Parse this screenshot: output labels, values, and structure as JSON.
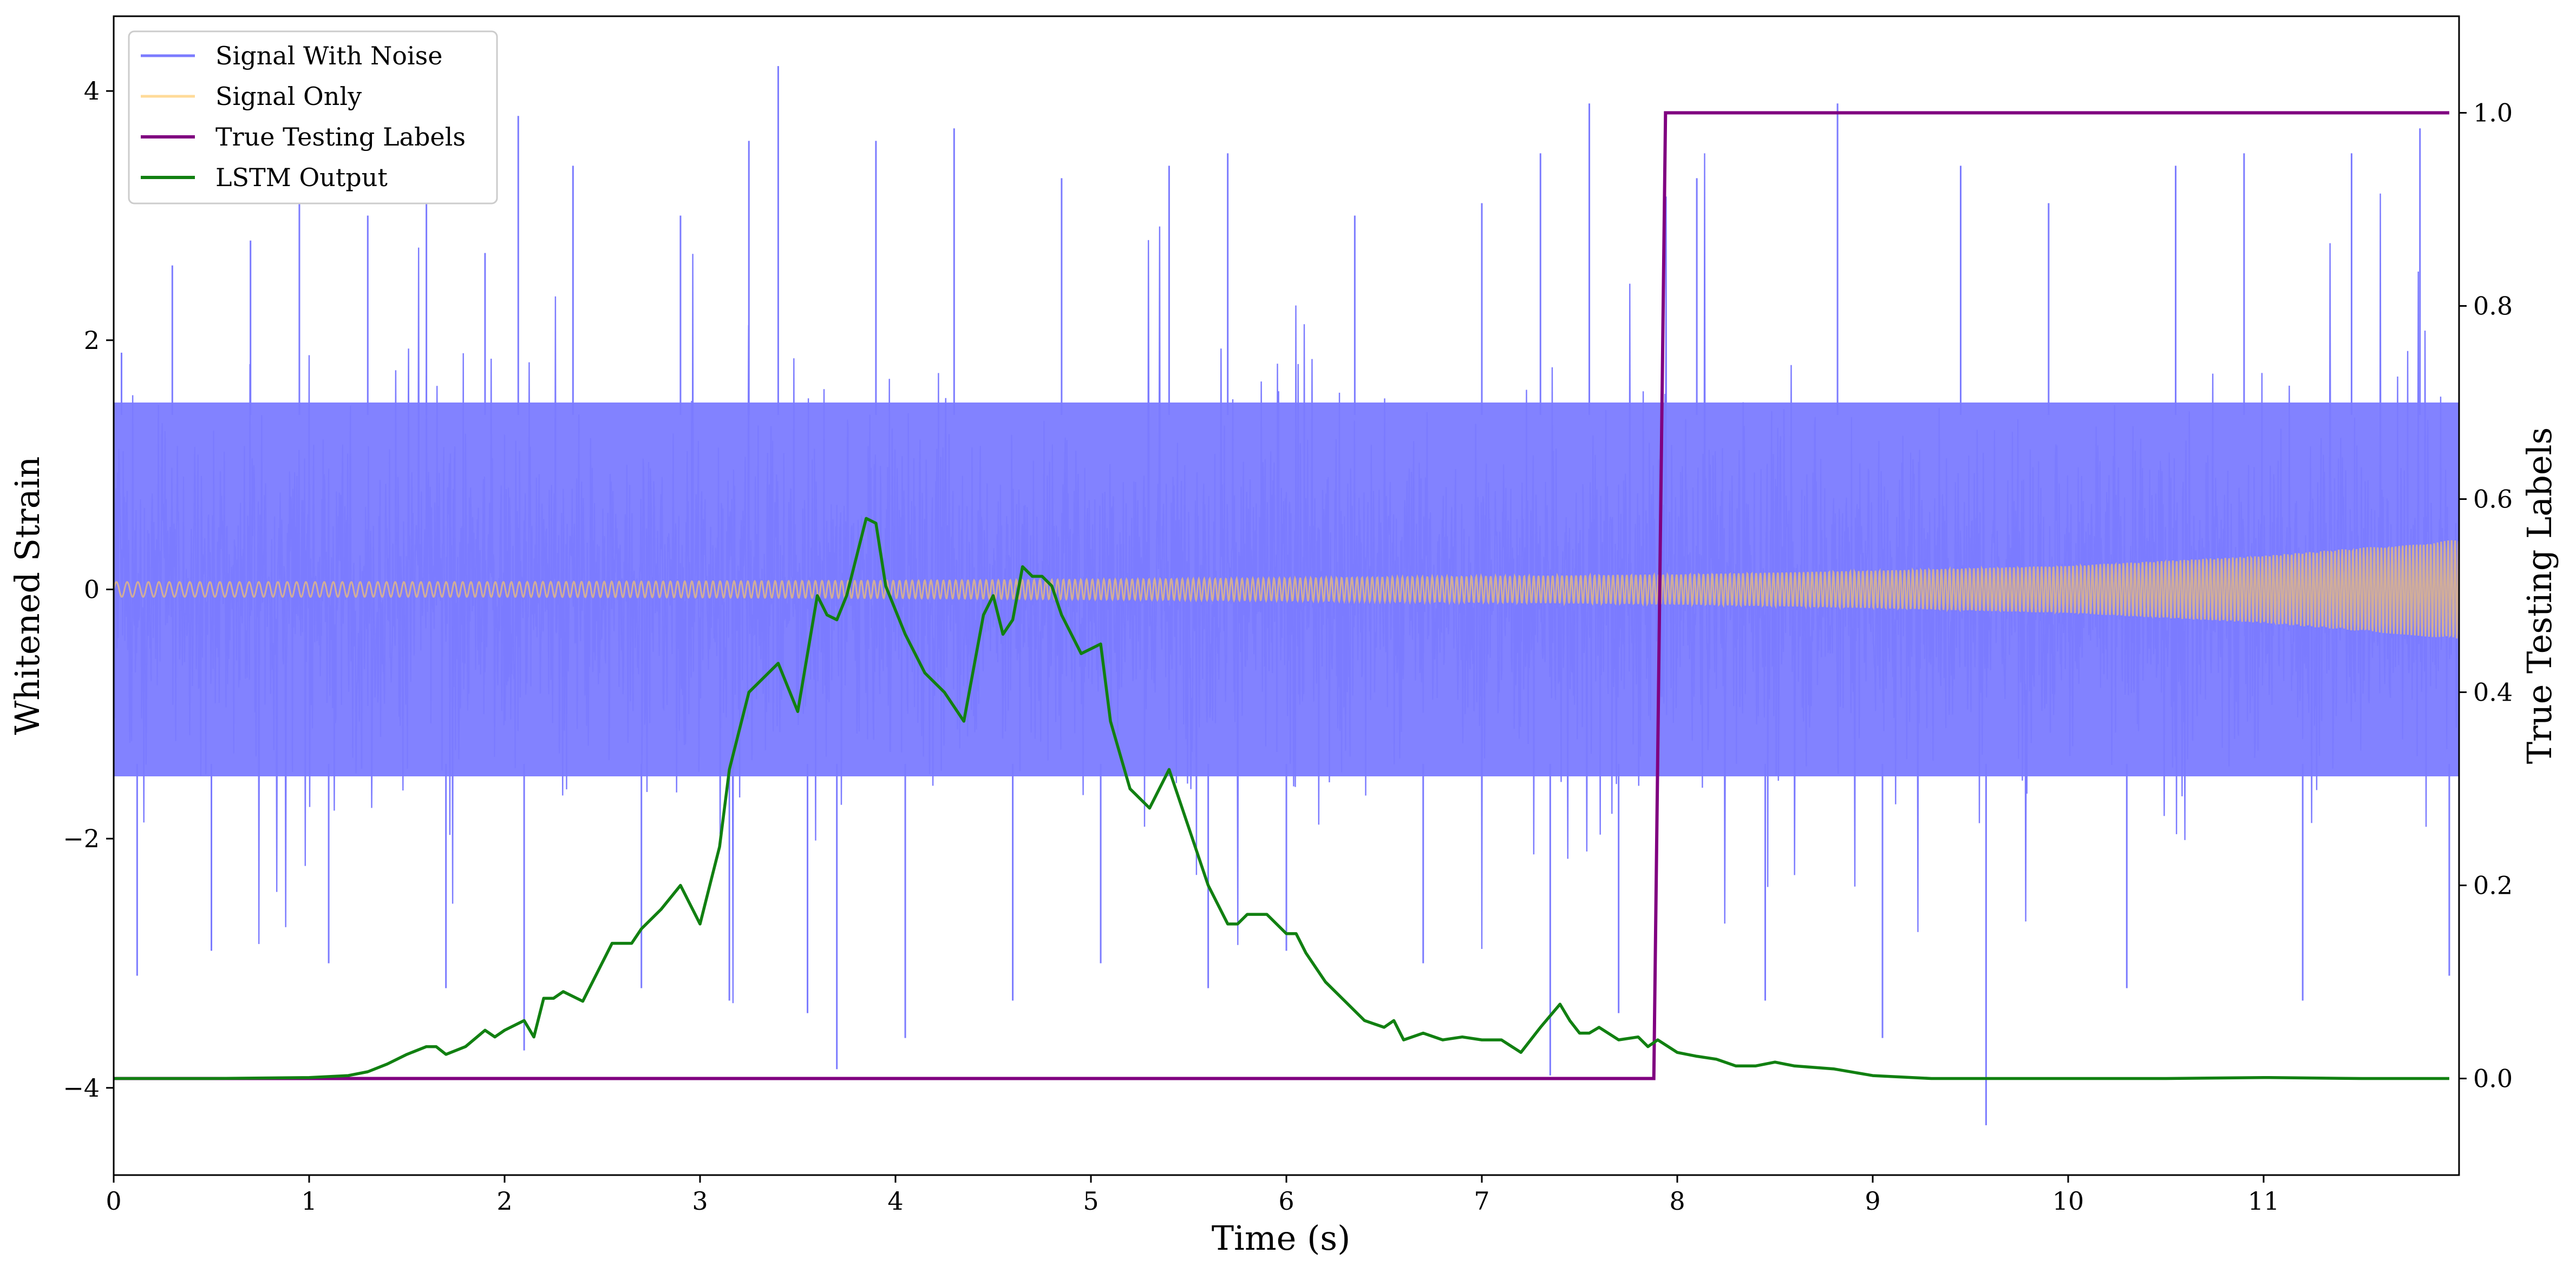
{
  "chart_data": {
    "type": "line",
    "xlabel": "Time (s)",
    "ylabel_left": "Whitened Strain",
    "ylabel_right": "True Testing Labels",
    "xlim": [
      0,
      12
    ],
    "ylim_left": [
      -4.7,
      4.6
    ],
    "ylim_right": [
      -0.1,
      1.1
    ],
    "x_ticks": [
      0,
      1,
      2,
      3,
      4,
      5,
      6,
      7,
      8,
      9,
      10,
      11
    ],
    "y_left_ticks": [
      {
        "value": -4,
        "label": "−4"
      },
      {
        "value": -2,
        "label": "−2"
      },
      {
        "value": 0,
        "label": "0"
      },
      {
        "value": 2,
        "label": "2"
      },
      {
        "value": 4,
        "label": "4"
      }
    ],
    "y_right_ticks": [
      {
        "value": 0.0,
        "label": "0.0"
      },
      {
        "value": 0.2,
        "label": "0.2"
      },
      {
        "value": 0.4,
        "label": "0.4"
      },
      {
        "value": 0.6,
        "label": "0.6"
      },
      {
        "value": 0.8,
        "label": "0.8"
      },
      {
        "value": 1.0,
        "label": "1.0"
      }
    ],
    "grid": false,
    "legend_position": "top-left",
    "series": [
      {
        "name": "Signal With Noise",
        "axis": "left",
        "color": "#7b7bff",
        "style": "dense noise band",
        "x_range": [
          0,
          12
        ],
        "core_amplitude": [
          -1.5,
          1.5
        ],
        "peak_range": [
          -4.3,
          4.2
        ],
        "spikes": [
          {
            "x": 0.04,
            "y": 1.9
          },
          {
            "x": 0.12,
            "y": -3.1
          },
          {
            "x": 0.3,
            "y": 2.6
          },
          {
            "x": 0.5,
            "y": -2.9
          },
          {
            "x": 0.7,
            "y": 2.8
          },
          {
            "x": 0.95,
            "y": 3.1
          },
          {
            "x": 1.1,
            "y": -3.0
          },
          {
            "x": 1.3,
            "y": 3.0
          },
          {
            "x": 1.6,
            "y": 3.1
          },
          {
            "x": 1.7,
            "y": -3.2
          },
          {
            "x": 1.9,
            "y": 2.7
          },
          {
            "x": 2.07,
            "y": 3.8
          },
          {
            "x": 2.1,
            "y": -3.7
          },
          {
            "x": 2.35,
            "y": 3.4
          },
          {
            "x": 2.7,
            "y": -3.2
          },
          {
            "x": 2.9,
            "y": 3.0
          },
          {
            "x": 3.15,
            "y": -3.3
          },
          {
            "x": 3.25,
            "y": 3.6
          },
          {
            "x": 3.4,
            "y": 4.2
          },
          {
            "x": 3.55,
            "y": -3.4
          },
          {
            "x": 3.7,
            "y": -3.85
          },
          {
            "x": 3.9,
            "y": 3.6
          },
          {
            "x": 4.05,
            "y": -3.6
          },
          {
            "x": 4.3,
            "y": 3.7
          },
          {
            "x": 4.6,
            "y": -3.3
          },
          {
            "x": 4.85,
            "y": 3.3
          },
          {
            "x": 5.05,
            "y": -3.0
          },
          {
            "x": 5.4,
            "y": 3.4
          },
          {
            "x": 5.6,
            "y": -3.2
          },
          {
            "x": 5.7,
            "y": 3.5
          },
          {
            "x": 6.0,
            "y": -2.9
          },
          {
            "x": 6.35,
            "y": 3.0
          },
          {
            "x": 6.7,
            "y": -3.0
          },
          {
            "x": 7.0,
            "y": 3.1
          },
          {
            "x": 7.3,
            "y": 3.5
          },
          {
            "x": 7.35,
            "y": -3.9
          },
          {
            "x": 7.55,
            "y": 3.9
          },
          {
            "x": 7.7,
            "y": -3.4
          },
          {
            "x": 8.1,
            "y": 3.3
          },
          {
            "x": 8.45,
            "y": -3.3
          },
          {
            "x": 8.82,
            "y": 3.9
          },
          {
            "x": 9.05,
            "y": -3.6
          },
          {
            "x": 9.45,
            "y": 3.4
          },
          {
            "x": 9.58,
            "y": -4.3
          },
          {
            "x": 9.9,
            "y": 3.1
          },
          {
            "x": 10.3,
            "y": -3.2
          },
          {
            "x": 10.55,
            "y": 3.4
          },
          {
            "x": 10.9,
            "y": 3.5
          },
          {
            "x": 11.2,
            "y": -3.3
          },
          {
            "x": 11.45,
            "y": 3.5
          },
          {
            "x": 11.8,
            "y": 3.7
          },
          {
            "x": 11.95,
            "y": -3.1
          }
        ]
      },
      {
        "name": "Signal Only",
        "axis": "left",
        "color": "#ffc861",
        "style": "chirp",
        "envelope": [
          {
            "x": 0,
            "amp": 0.06
          },
          {
            "x": 2,
            "amp": 0.06
          },
          {
            "x": 4,
            "amp": 0.07
          },
          {
            "x": 6,
            "amp": 0.09
          },
          {
            "x": 8,
            "amp": 0.12
          },
          {
            "x": 9,
            "amp": 0.15
          },
          {
            "x": 10,
            "amp": 0.19
          },
          {
            "x": 11,
            "amp": 0.27
          },
          {
            "x": 12,
            "amp": 0.4
          }
        ]
      },
      {
        "name": "True Testing Labels",
        "axis": "right",
        "color": "#800080",
        "x": [
          0,
          7.88,
          7.94,
          11.95
        ],
        "y": [
          0.0,
          0.0,
          1.0,
          1.0
        ]
      },
      {
        "name": "LSTM Output",
        "axis": "right",
        "color": "#118011",
        "x": [
          0,
          0.5,
          1.0,
          1.2,
          1.3,
          1.4,
          1.5,
          1.6,
          1.65,
          1.7,
          1.8,
          1.9,
          1.95,
          2.0,
          2.1,
          2.15,
          2.2,
          2.25,
          2.3,
          2.4,
          2.5,
          2.55,
          2.65,
          2.7,
          2.8,
          2.9,
          3.0,
          3.05,
          3.1,
          3.15,
          3.2,
          3.25,
          3.35,
          3.4,
          3.5,
          3.6,
          3.65,
          3.7,
          3.75,
          3.85,
          3.9,
          3.95,
          4.05,
          4.15,
          4.25,
          4.35,
          4.45,
          4.5,
          4.55,
          4.6,
          4.65,
          4.7,
          4.75,
          4.8,
          4.85,
          4.95,
          5.05,
          5.1,
          5.2,
          5.3,
          5.4,
          5.5,
          5.6,
          5.7,
          5.75,
          5.8,
          5.9,
          6.0,
          6.05,
          6.1,
          6.2,
          6.3,
          6.4,
          6.5,
          6.55,
          6.6,
          6.7,
          6.8,
          6.9,
          7.0,
          7.1,
          7.2,
          7.3,
          7.4,
          7.45,
          7.5,
          7.55,
          7.6,
          7.7,
          7.8,
          7.85,
          7.9,
          8.0,
          8.1,
          8.2,
          8.3,
          8.4,
          8.5,
          8.6,
          8.8,
          9.0,
          9.3,
          9.6,
          10.0,
          10.5,
          11.0,
          11.5,
          11.95
        ],
        "y": [
          0.0,
          0.0,
          0.001,
          0.003,
          0.007,
          0.015,
          0.025,
          0.033,
          0.033,
          0.025,
          0.033,
          0.05,
          0.043,
          0.05,
          0.06,
          0.043,
          0.083,
          0.083,
          0.09,
          0.08,
          0.12,
          0.14,
          0.14,
          0.155,
          0.175,
          0.2,
          0.16,
          0.2,
          0.24,
          0.32,
          0.36,
          0.4,
          0.42,
          0.43,
          0.38,
          0.5,
          0.48,
          0.475,
          0.5,
          0.58,
          0.575,
          0.51,
          0.46,
          0.42,
          0.4,
          0.37,
          0.48,
          0.5,
          0.46,
          0.475,
          0.53,
          0.52,
          0.52,
          0.51,
          0.48,
          0.44,
          0.45,
          0.37,
          0.3,
          0.28,
          0.32,
          0.26,
          0.2,
          0.16,
          0.16,
          0.17,
          0.17,
          0.15,
          0.15,
          0.13,
          0.1,
          0.08,
          0.06,
          0.053,
          0.06,
          0.04,
          0.047,
          0.04,
          0.043,
          0.04,
          0.04,
          0.027,
          0.053,
          0.077,
          0.06,
          0.047,
          0.047,
          0.053,
          0.04,
          0.043,
          0.033,
          0.04,
          0.027,
          0.023,
          0.02,
          0.013,
          0.013,
          0.017,
          0.013,
          0.01,
          0.003,
          0.0,
          0.0,
          0.0,
          0.0,
          0.001,
          0.0,
          0.0
        ]
      }
    ]
  }
}
